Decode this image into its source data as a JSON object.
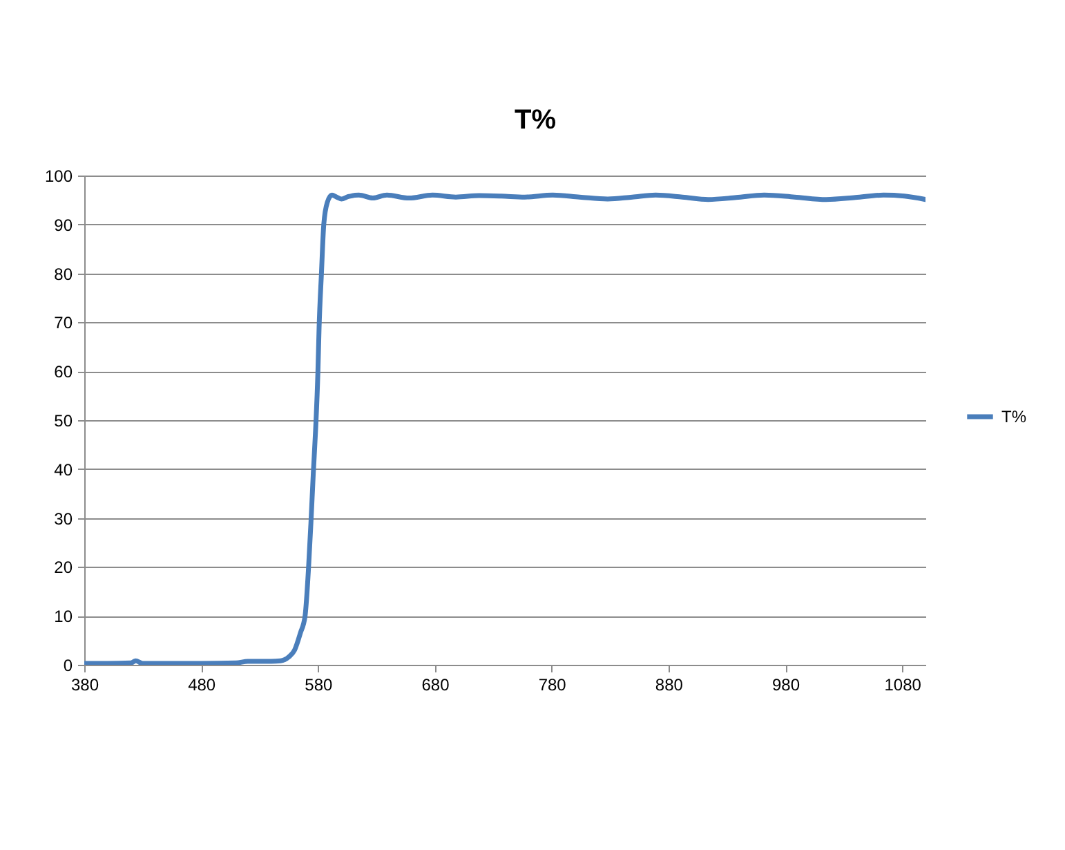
{
  "chart_data": {
    "type": "line",
    "title": "T%",
    "x": [
      380,
      400,
      420,
      424,
      430,
      450,
      480,
      510,
      520,
      540,
      548,
      555,
      560,
      565,
      569,
      572,
      574,
      576,
      578,
      580,
      581,
      583,
      585,
      588,
      592,
      596,
      600,
      606,
      615,
      627,
      639,
      658,
      678,
      698,
      718,
      737,
      757,
      781,
      804,
      828,
      849,
      869,
      892,
      914,
      938,
      962,
      988,
      1015,
      1040,
      1064,
      1082,
      1100
    ],
    "series": [
      {
        "name": "T%",
        "color": "#4a7ebb",
        "values": [
          0.3,
          0.3,
          0.4,
          0.8,
          0.3,
          0.3,
          0.3,
          0.4,
          0.7,
          0.7,
          0.8,
          1.6,
          3,
          6.5,
          10,
          20,
          29,
          39,
          48,
          60,
          69,
          80,
          90,
          94.5,
          96,
          95.6,
          95.2,
          95.7,
          96,
          95.4,
          96,
          95.4,
          96,
          95.6,
          95.9,
          95.8,
          95.6,
          96,
          95.6,
          95.2,
          95.6,
          96,
          95.6,
          95.1,
          95.5,
          96,
          95.6,
          95.1,
          95.5,
          96,
          95.8,
          95.1
        ]
      }
    ],
    "xlim": [
      380,
      1100
    ],
    "xticks": [
      380,
      480,
      580,
      680,
      780,
      880,
      980,
      1080
    ],
    "ylim": [
      0,
      100
    ],
    "yticks": [
      0,
      10,
      20,
      30,
      40,
      50,
      60,
      70,
      80,
      90,
      100
    ],
    "grid": "y",
    "legend": "right",
    "line_style": "solid"
  }
}
